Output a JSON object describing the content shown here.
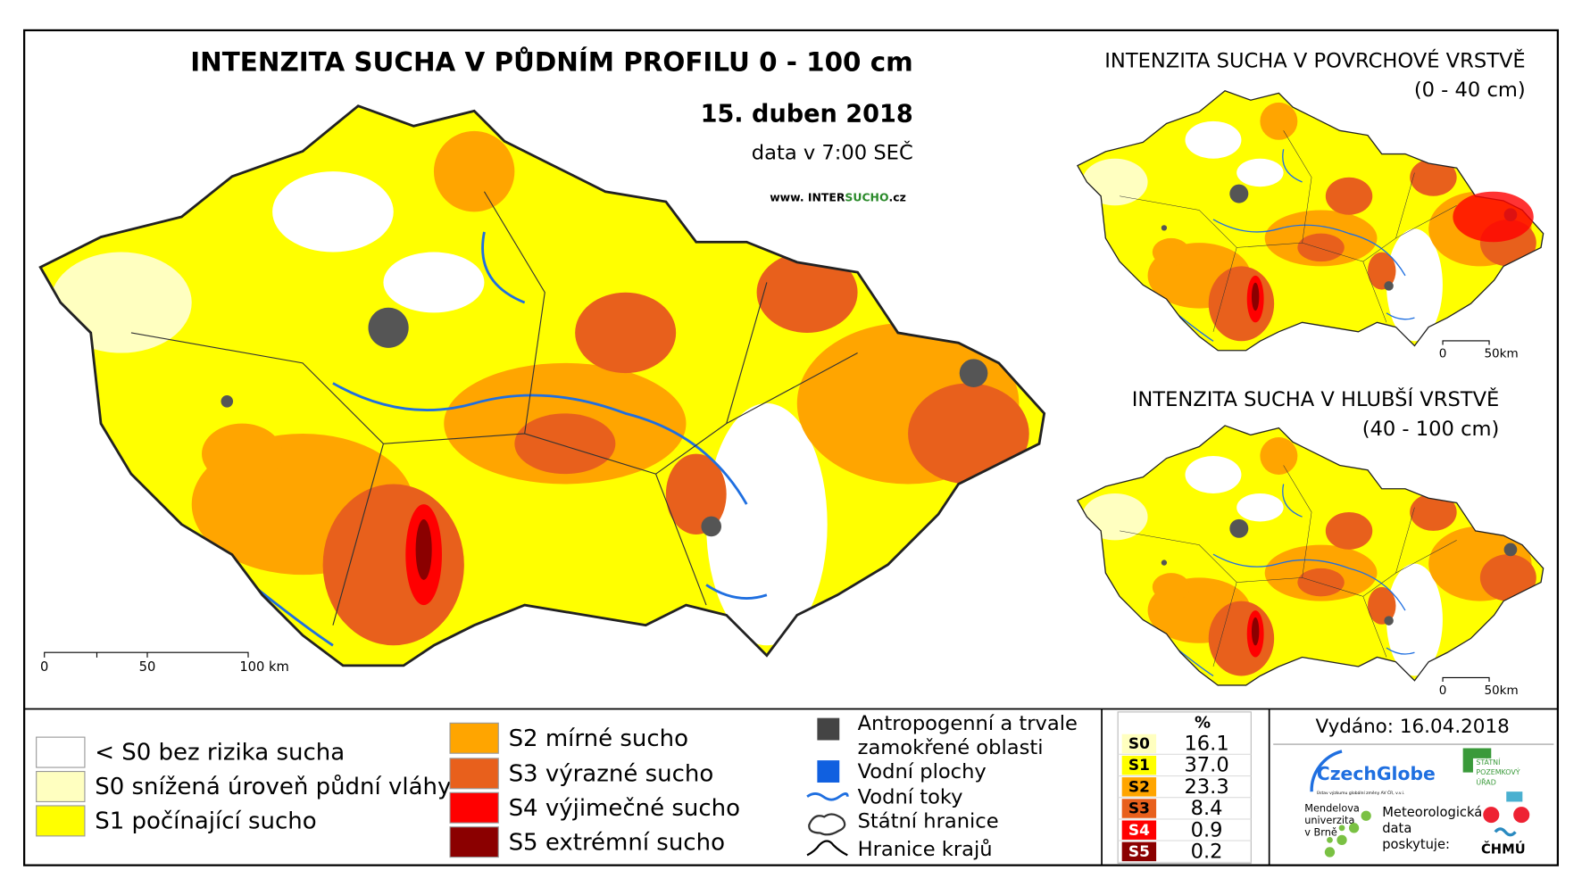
{
  "main_map": {
    "title": "INTENZITA SUCHA V PŮDNÍM PROFILU 0 - 100 cm",
    "date": "15. duben 2018",
    "data_time": "data v 7:00 SEČ",
    "website": {
      "prefix": "www. INTER",
      "highlight": "SUCHO",
      "suffix": ".cz"
    },
    "scale_labels": [
      "0",
      "50",
      "100 km"
    ]
  },
  "surface_map": {
    "title": "INTENZITA SUCHA V POVRCHOVÉ VRSTVĚ",
    "depth": "(0 - 40 cm)",
    "scale_labels": [
      "0",
      "50km"
    ]
  },
  "deep_map": {
    "title": "INTENZITA SUCHA V HLUBŠÍ VRSTVĚ",
    "depth": "(40 - 100 cm)",
    "scale_labels": [
      "0",
      "50km"
    ]
  },
  "legend": {
    "items": [
      {
        "label": "< S0 bez rizika sucha",
        "color": "#ffffff"
      },
      {
        "label": "S0 snížená úroveň půdní vláhy",
        "color": "#ffffc0"
      },
      {
        "label": "S1 počínající sucho",
        "color": "#ffff00"
      },
      {
        "label": "S2 mírné sucho",
        "color": "#ffa500"
      },
      {
        "label": "S3 výrazné sucho",
        "color": "#e8601c"
      },
      {
        "label": "S4 výjimečné sucho",
        "color": "#ff0000"
      },
      {
        "label": "S5 extrémní sucho",
        "color": "#8b0000"
      }
    ]
  },
  "overlay_legend": {
    "anthropogenic": [
      "Antropogenní a trvale",
      "zamokřené oblasti"
    ],
    "water_bodies": "Vodní plochy",
    "rivers": "Vodní toky",
    "state_border": "Státní hranice",
    "region_border": "Hranice krajů"
  },
  "stats": {
    "header": "%",
    "rows": [
      {
        "class": "S0",
        "value": "16.1",
        "color": "#ffffc0"
      },
      {
        "class": "S1",
        "value": "37.0",
        "color": "#ffff00"
      },
      {
        "class": "S2",
        "value": "23.3",
        "color": "#ffa500"
      },
      {
        "class": "S3",
        "value": "8.4",
        "color": "#e8601c"
      },
      {
        "class": "S4",
        "value": "0.9",
        "color": "#ff0000"
      },
      {
        "class": "S5",
        "value": "0.2",
        "color": "#8b0000"
      }
    ]
  },
  "issued": "Vydáno: 16.04.2018",
  "logos": {
    "czechglobe": "CzechGlobe",
    "czechglobe_sub": "Ústav výzkumu globální změny AV ČR, v.v.i.",
    "spu": [
      "STÁTNÍ",
      "POZEMKOVÝ",
      "ÚŘAD"
    ],
    "mendelu": [
      "Mendelova",
      "univerzita",
      "v Brně"
    ],
    "chmu_note": [
      "Meteorologická",
      "data",
      "poskytuje:"
    ],
    "chmu": "ČHMÚ"
  }
}
